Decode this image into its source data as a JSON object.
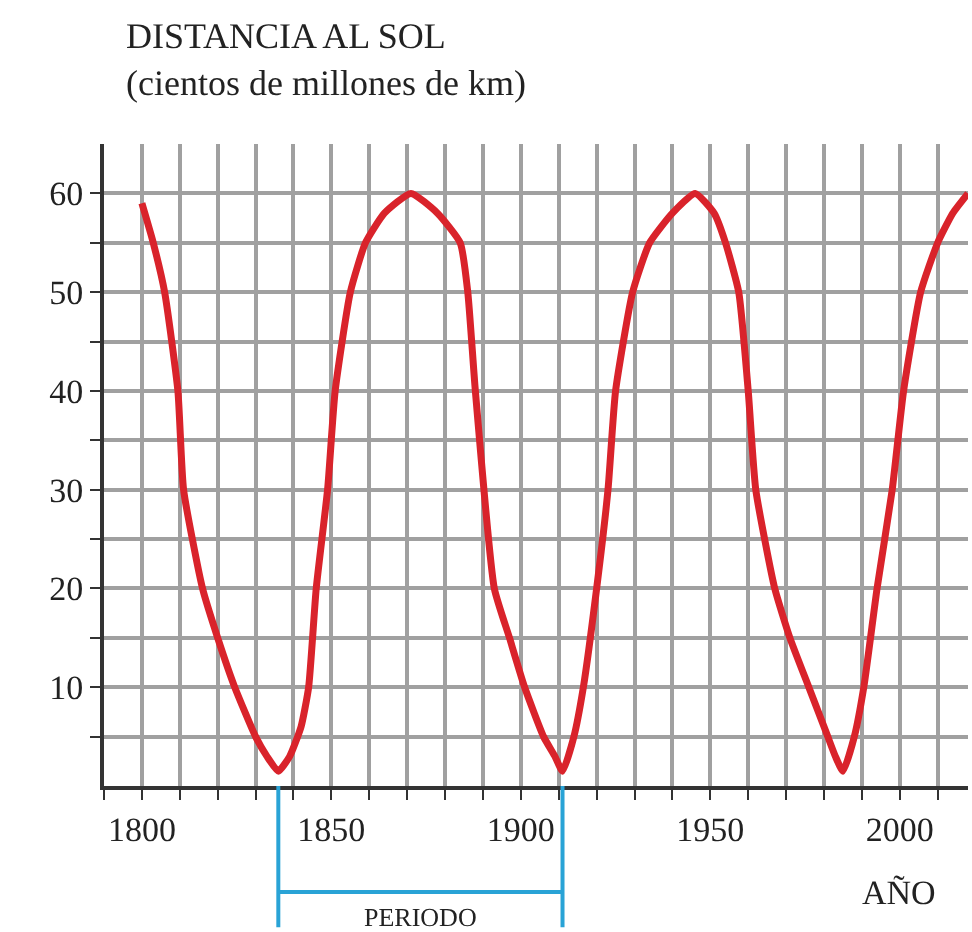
{
  "chart_data": {
    "type": "line",
    "title": "DISTANCIA AL SOL",
    "subtitle": "(cientos de millones de km)",
    "xlabel": "AÑO",
    "x": [
      1800,
      1803,
      1806,
      1809.5,
      1811,
      1816,
      1820,
      1824.5,
      1830,
      1833,
      1836,
      1839,
      1842,
      1844,
      1846,
      1849,
      1851,
      1855,
      1859,
      1864,
      1871,
      1878,
      1884,
      1886,
      1888,
      1893,
      1897,
      1901,
      1906,
      1909,
      1911,
      1914,
      1916.5,
      1920,
      1923,
      1925,
      1929.5,
      1934,
      1940,
      1946,
      1951,
      1954,
      1957.5,
      1960,
      1962,
      1967,
      1971,
      1976,
      1981,
      1983,
      1985,
      1988,
      1990.5,
      1994,
      1998,
      2001,
      2005.5,
      2010,
      2014,
      2018
    ],
    "series": [
      {
        "color": "#d9232b",
        "values": [
          59,
          55,
          50,
          40,
          30,
          20,
          15,
          10,
          5,
          3,
          1.5,
          3,
          6,
          10,
          20,
          30,
          40,
          50,
          55,
          58,
          60,
          58,
          55,
          50,
          40,
          20,
          15,
          10,
          5,
          3,
          1.5,
          5,
          10,
          20,
          30,
          40,
          50,
          55,
          58,
          60,
          58,
          55,
          50,
          40,
          30,
          20,
          15,
          10,
          5,
          3,
          1.5,
          5,
          10,
          20,
          30,
          40,
          50,
          55,
          58,
          60
        ]
      }
    ],
    "xlim": [
      1790,
      2018
    ],
    "ylim": [
      0,
      65
    ],
    "xticks": [
      {
        "value": 1790,
        "label": null
      },
      1800,
      {
        "value": 1810,
        "label": null
      },
      {
        "value": 1820,
        "label": null
      },
      {
        "value": 1830,
        "label": null
      },
      {
        "value": 1840,
        "label": null
      },
      1850,
      {
        "value": 1860,
        "label": null
      },
      {
        "value": 1870,
        "label": null
      },
      {
        "value": 1880,
        "label": null
      },
      {
        "value": 1890,
        "label": null
      },
      1900,
      {
        "value": 1910,
        "label": null
      },
      {
        "value": 1920,
        "label": null
      },
      {
        "value": 1930,
        "label": null
      },
      {
        "value": 1940,
        "label": null
      },
      1950,
      {
        "value": 1960,
        "label": null
      },
      {
        "value": 1970,
        "label": null
      },
      {
        "value": 1980,
        "label": null
      },
      {
        "value": 1990,
        "label": null
      },
      2000,
      {
        "value": 2010,
        "label": null
      }
    ],
    "yticks": [
      {
        "value": 5,
        "label": null
      },
      10,
      {
        "value": 15,
        "label": null
      },
      20,
      {
        "value": 25,
        "label": null
      },
      30,
      {
        "value": 35,
        "label": null
      },
      40,
      {
        "value": 45,
        "label": null
      },
      50,
      {
        "value": 55,
        "label": null
      },
      60
    ],
    "grid": true,
    "marker": "none",
    "line_style": "solid",
    "annotations": [
      "PERIODO"
    ]
  }
}
